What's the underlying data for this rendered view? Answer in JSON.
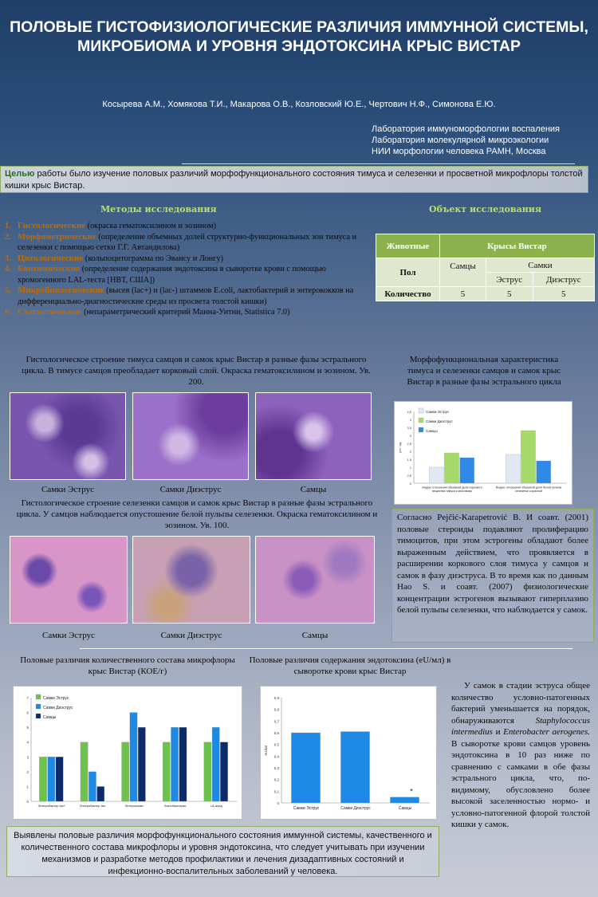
{
  "title": "ПОЛОВЫЕ ГИСТОФИЗИОЛОГИЧЕСКИЕ РАЗЛИЧИЯ ИММУННОЙ СИСТЕМЫ, МИКРОБИОМА И УРОВНЯ ЭНДОТОКСИНА КРЫС ВИСТАР",
  "authors": "Косырева А.М., Хомякова Т.И., Макарова О.В., Козловский Ю.Е., Чертович Н.Ф., Симонова Е.Ю.",
  "affiliations": [
    "Лаборатория иммуноморфологии воспаления",
    "Лаборатория молекулярной микроэкологии",
    "НИИ морфологии человека РАМН, Москва"
  ],
  "aim": {
    "keyword": "Целью",
    "text": " работы было изучение половых различий морфофункционального состояния тимуса и селезенки и просветной микрофлоры толстой кишки крыс Вистар."
  },
  "methods": {
    "heading": "Методы исследования",
    "items": [
      {
        "num": "1.",
        "key": "Гистологические",
        "text": " (окраска гематоксилином и эозином)"
      },
      {
        "num": "2.",
        "key": "Морфометрические",
        "text": " (определение объемных долей структурно-функциональных зон тимуса и селезенки с помощью сетки Г.Г. Автандилова)"
      },
      {
        "num": "3.",
        "key": "Цитологические",
        "text": " (кольпоцитограмма по Эвансу и Лонгу)"
      },
      {
        "num": "4.",
        "key": "Биохимические",
        "text": " (определение содержания эндотоксина в сыворотке крови с помощью хромогенного LAL-теста [НВТ, США])"
      },
      {
        "num": "5.",
        "key": "Микробиологические",
        "text": " (высев (lac+) и (lac-) штаммов E.coli,  лактобактерий и энтерококков на дифференциально-диагностические среды из просвета толстой кишки)"
      },
      {
        "num": "6.",
        "key": "Статистические",
        "text": " (непараметрический критерий Манна-Уитни, Statistica 7.0)"
      }
    ]
  },
  "object": {
    "heading": "Объект исследования",
    "animals_label": "Животные",
    "animals_value": "Крысы Вистар",
    "sex_label": "Пол",
    "males": "Самцы",
    "females": "Самки",
    "estrus": "Эструс",
    "diestrus": "Диэструс",
    "count_label": "Количество",
    "counts": [
      "5",
      "5",
      "5"
    ]
  },
  "thymus_caption": "Гистологическое строение тимуса самцов и самок крыс Вистар в разные фазы эстрального цикла. В тимусе самцов преобладает корковый слой. Окраска гематоксилином и эозином. Ув. 200.",
  "spleen_caption": "Гистологическое строение селезенки самцов и самок крыс Вистар в разные фазы эстрального цикла. У самцов наблюдается  опустошение белой пульпы селезенки. Окраска гематоксилином и эозином. Ув. 100.",
  "photo_labels": [
    "Самки Эструс",
    "Самки Диэструс",
    "Самцы"
  ],
  "morpho_heading": "Морфофункциональная характеристика тимуса и селезенки самцов и самок крыс Вистар в разные фазы эстрального цикла",
  "literature_text": "Согласно Pejčić-Karapetrović B. И соавт. (2001) половые стероиды подавляют пролиферацию тимоцитов, при этом эстрогены обладают более выраженным действием, что проявляется в расширении коркового слоя тимуса у самцов и самок в фазу диэструса. В то время как по данным Hao S. и соавт. (2007) физиологические концентрации эстрогенов вызывают гиперплазию белой пульпы селезенки, что наблюдается у самок.",
  "micro_heading": "Половые различия количественного состава микрофлоры крыс Вистар (КОЕ/г)",
  "endo_heading": "Половые различия  содержания эндотоксина (eU/мл) в сыворотке крови крыс Вистар",
  "right_text_1": "У самок в стадии эструса общее количество условно-патогенных бактерий уменьшается на порядок, обнаруживаются ",
  "right_italic_1": "Staphylococcus intermedius",
  "right_text_2": " и ",
  "right_italic_2": "Enterobacter aerogenes.",
  "right_text_3": " В сыворотке крови самцов уровень эндотоксина в 10 раз ниже по сравнению с самками в обе фазы эстрального цикла, что, по-видимому, обусловлено более высокой заселенностью нормо- и условно-патогенной флорой толстой кишки у самок.",
  "conclusion": "Выявлены половые различия морфофункционального состояния иммунной системы, качественного и количественного состава микрофлоры и уровня эндотоксина, что следует учитывать при изучении механизмов и разработке методов профилактики и лечения дизадаптивных состояний и инфекционно-воспалительных заболеваний у человека.",
  "chart_data": [
    {
      "type": "bar",
      "title": "",
      "categories": [
        "Индекс отношения объемной доли коркового вещества тимуса к мозговому",
        "Индекс отношения объемной доли белой пульпы селезенки к красной"
      ],
      "series": [
        {
          "name": "Самки Эструс",
          "values": [
            1.0,
            1.8
          ],
          "color": "#e0e8f4"
        },
        {
          "name": "Самки Диэструс",
          "values": [
            1.9,
            3.3
          ],
          "color": "#a6d96a"
        },
        {
          "name": "Самцы",
          "values": [
            1.6,
            1.4
          ],
          "color": "#2e8ae6"
        }
      ],
      "ylim": [
        0,
        4.5
      ],
      "yticks": [
        "0",
        "0,5",
        "1",
        "1,5",
        "2",
        "2,5",
        "3",
        "3,5",
        "4",
        "4,5"
      ],
      "ylabel": "усл. ед.",
      "legend": "top-left"
    },
    {
      "type": "bar",
      "title": "",
      "categories": [
        "Энтеробактер lac+",
        "Энтеробактер lac-",
        "Энтерококки",
        "Лактобактерии",
        "LA-асид"
      ],
      "series": [
        {
          "name": "Самки  Эструс",
          "values": [
            3,
            4,
            4,
            4,
            4
          ],
          "color": "#6cc24a"
        },
        {
          "name": "Самки Диэструс",
          "values": [
            3,
            2,
            6,
            5,
            5
          ],
          "color": "#1e88e5"
        },
        {
          "name": "Самцы",
          "values": [
            3,
            1,
            5,
            5,
            4
          ],
          "color": "#0d2a6b"
        }
      ],
      "ylim": [
        0,
        7
      ],
      "yticks": [
        "0",
        "1",
        "2",
        "3",
        "4",
        "5",
        "6",
        "7"
      ],
      "legend": "top-left"
    },
    {
      "type": "bar",
      "title": "",
      "categories": [
        "Самки  Эструс",
        "Самки Диэструс",
        "Самцы"
      ],
      "values": [
        0.6,
        0.61,
        0.05
      ],
      "ylim": [
        0,
        0.9
      ],
      "yticks": [
        "0",
        "0,1",
        "0,2",
        "0,3",
        "0,4",
        "0,5",
        "0,6",
        "0,7",
        "0,8",
        "0,9"
      ],
      "ylabel": "eU/мл",
      "annotation": "*"
    }
  ]
}
